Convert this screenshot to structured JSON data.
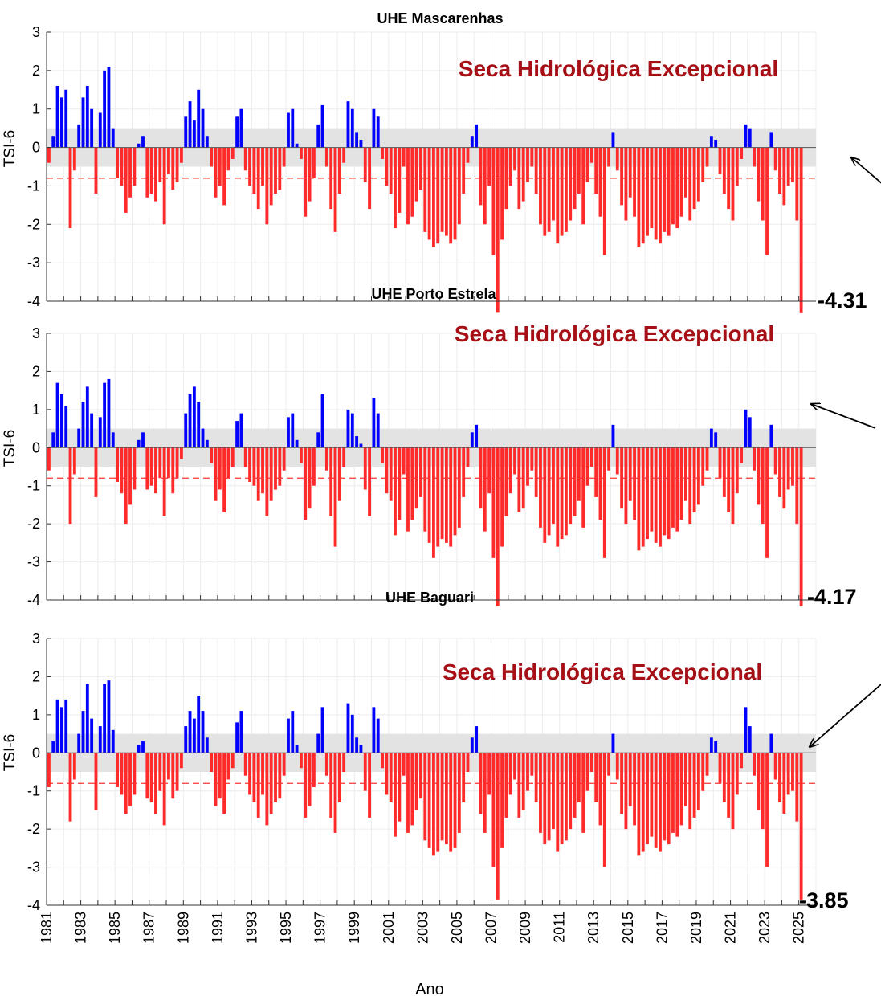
{
  "colors": {
    "positive": "#0000ff",
    "negative": "#ff2a2a",
    "neutral_band": "#e3e3e3",
    "threshold_line": "#ff3333",
    "annotation": "#a50f15"
  },
  "chart_data": [
    {
      "type": "bar",
      "title": "UHE Mascarenhas",
      "ylabel": "TSI-6",
      "ylim": [
        -4,
        3
      ],
      "yticks": [
        -4,
        -3,
        -2,
        -1,
        0,
        1,
        2,
        3
      ],
      "xlim": [
        1981,
        2026
      ],
      "neutral_band": [
        -0.5,
        0.5
      ],
      "threshold": -0.8,
      "grid": true,
      "annotation": "Seca Hidrológica Excepcional",
      "min_label": "-4.31",
      "x": [
        1981.0,
        1981.25,
        1981.5,
        1981.75,
        1982.0,
        1982.25,
        1982.5,
        1982.75,
        1983.0,
        1983.25,
        1983.5,
        1983.75,
        1984.0,
        1984.25,
        1984.5,
        1984.75,
        1985.0,
        1985.25,
        1985.5,
        1985.75,
        1986.0,
        1986.25,
        1986.5,
        1986.75,
        1987.0,
        1987.25,
        1987.5,
        1987.75,
        1988.0,
        1988.25,
        1988.5,
        1988.75,
        1989.0,
        1989.25,
        1989.5,
        1989.75,
        1990.0,
        1990.25,
        1990.5,
        1990.75,
        1991.0,
        1991.25,
        1991.5,
        1991.75,
        1992.0,
        1992.25,
        1992.5,
        1992.75,
        1993.0,
        1993.25,
        1993.5,
        1993.75,
        1994.0,
        1994.25,
        1994.5,
        1994.75,
        1995.0,
        1995.25,
        1995.5,
        1995.75,
        1996.0,
        1996.25,
        1996.5,
        1996.75,
        1997.0,
        1997.25,
        1997.5,
        1997.75,
        1998.0,
        1998.25,
        1998.5,
        1998.75,
        1999.0,
        1999.25,
        1999.5,
        1999.75,
        2000.0,
        2000.25,
        2000.5,
        2000.75,
        2001.0,
        2001.25,
        2001.5,
        2001.75,
        2002.0,
        2002.25,
        2002.5,
        2002.75,
        2003.0,
        2003.25,
        2003.5,
        2003.75,
        2004.0,
        2004.25,
        2004.5,
        2004.75,
        2005.0,
        2005.25,
        2005.5,
        2005.75,
        2006.0,
        2006.25,
        2006.5,
        2006.75,
        2007.0,
        2007.25,
        2007.5,
        2007.75,
        2008.0,
        2008.25,
        2008.5,
        2008.75,
        2009.0,
        2009.25,
        2009.5,
        2009.75,
        2010.0,
        2010.25,
        2010.5,
        2010.75,
        2011.0,
        2011.25,
        2011.5,
        2011.75,
        2012.0,
        2012.25,
        2012.5,
        2012.75,
        2013.0,
        2013.25,
        2013.5,
        2013.75,
        2014.0,
        2014.25,
        2014.5,
        2014.75,
        2015.0,
        2015.25,
        2015.5,
        2015.75,
        2016.0,
        2016.25,
        2016.5,
        2016.75,
        2017.0,
        2017.25,
        2017.5,
        2017.75,
        2018.0,
        2018.25,
        2018.5,
        2018.75,
        2019.0,
        2019.25,
        2019.5,
        2019.75,
        2020.0,
        2020.25,
        2020.5,
        2020.75,
        2021.0,
        2021.25,
        2021.5,
        2021.75,
        2022.0,
        2022.25,
        2022.5,
        2022.75,
        2023.0,
        2023.25,
        2023.5,
        2023.75,
        2024.0,
        2024.25,
        2024.5,
        2024.75,
        2025.0
      ],
      "y": [
        -0.4,
        0.3,
        1.6,
        1.3,
        1.5,
        -2.1,
        -0.6,
        0.6,
        1.3,
        1.6,
        1.0,
        -1.2,
        0.9,
        2.0,
        2.1,
        0.5,
        -0.8,
        -1.0,
        -1.7,
        -1.3,
        -1.0,
        0.1,
        0.3,
        -1.3,
        -1.2,
        -1.4,
        -0.9,
        -2.0,
        -0.7,
        -1.1,
        -0.9,
        -0.4,
        0.8,
        1.2,
        0.7,
        1.5,
        1.0,
        0.3,
        -0.5,
        -1.3,
        -1.0,
        -1.5,
        -0.6,
        -0.3,
        0.8,
        1.0,
        -0.6,
        -1.0,
        -1.2,
        -1.6,
        -1.0,
        -2.0,
        -1.5,
        -1.2,
        -1.1,
        -0.5,
        0.9,
        1.0,
        0.1,
        -0.3,
        -1.8,
        -1.4,
        -0.8,
        0.6,
        1.1,
        -0.5,
        -1.6,
        -2.2,
        -1.2,
        -0.4,
        1.2,
        1.0,
        0.4,
        0.2,
        -0.9,
        -1.6,
        1.0,
        0.8,
        -0.3,
        -1.0,
        -1.2,
        -2.1,
        -1.7,
        -0.5,
        -2.0,
        -1.8,
        -1.4,
        -1.1,
        -2.2,
        -2.4,
        -2.6,
        -2.5,
        -2.2,
        -2.3,
        -2.5,
        -2.4,
        -2.0,
        -1.2,
        -0.4,
        0.3,
        0.6,
        -1.5,
        -2.0,
        -1.0,
        -2.8,
        -4.3,
        -2.4,
        -1.6,
        -1.0,
        -0.6,
        -1.6,
        -1.4,
        -0.9,
        -0.5,
        -1.2,
        -2.0,
        -2.3,
        -2.2,
        -1.9,
        -2.5,
        -2.3,
        -2.2,
        -1.9,
        -1.6,
        -1.2,
        -2.0,
        -0.9,
        -0.4,
        -1.2,
        -1.8,
        -2.8,
        -0.5,
        0.4,
        -0.6,
        -1.5,
        -1.9,
        -1.3,
        -1.8,
        -2.6,
        -2.5,
        -2.3,
        -2.1,
        -2.4,
        -2.5,
        -2.2,
        -2.3,
        -2.0,
        -2.1,
        -1.8,
        -1.3,
        -1.9,
        -1.6,
        -1.4,
        -0.9,
        -0.5,
        0.3,
        0.2,
        -0.7,
        -1.2,
        -1.6,
        -1.9,
        -1.0,
        -0.3,
        0.6,
        0.5,
        -0.5,
        -1.4,
        -1.9,
        -2.8,
        0.4,
        -0.6,
        -1.2,
        -1.5,
        -1.0,
        -0.9,
        -1.9,
        -4.31
      ]
    },
    {
      "type": "bar",
      "title": "UHE Porto Estrela",
      "ylabel": "TSI-6",
      "ylim": [
        -4,
        3
      ],
      "yticks": [
        -4,
        -3,
        -2,
        -1,
        0,
        1,
        2,
        3
      ],
      "xlim": [
        1981,
        2026
      ],
      "neutral_band": [
        -0.5,
        0.5
      ],
      "threshold": -0.8,
      "grid": true,
      "annotation": "Seca Hidrológica Excepcional",
      "min_label": "-4.17",
      "x": [
        1981.0,
        1981.25,
        1981.5,
        1981.75,
        1982.0,
        1982.25,
        1982.5,
        1982.75,
        1983.0,
        1983.25,
        1983.5,
        1983.75,
        1984.0,
        1984.25,
        1984.5,
        1984.75,
        1985.0,
        1985.25,
        1985.5,
        1985.75,
        1986.0,
        1986.25,
        1986.5,
        1986.75,
        1987.0,
        1987.25,
        1987.5,
        1987.75,
        1988.0,
        1988.25,
        1988.5,
        1988.75,
        1989.0,
        1989.25,
        1989.5,
        1989.75,
        1990.0,
        1990.25,
        1990.5,
        1990.75,
        1991.0,
        1991.25,
        1991.5,
        1991.75,
        1992.0,
        1992.25,
        1992.5,
        1992.75,
        1993.0,
        1993.25,
        1993.5,
        1993.75,
        1994.0,
        1994.25,
        1994.5,
        1994.75,
        1995.0,
        1995.25,
        1995.5,
        1995.75,
        1996.0,
        1996.25,
        1996.5,
        1996.75,
        1997.0,
        1997.25,
        1997.5,
        1997.75,
        1998.0,
        1998.25,
        1998.5,
        1998.75,
        1999.0,
        1999.25,
        1999.5,
        1999.75,
        2000.0,
        2000.25,
        2000.5,
        2000.75,
        2001.0,
        2001.25,
        2001.5,
        2001.75,
        2002.0,
        2002.25,
        2002.5,
        2002.75,
        2003.0,
        2003.25,
        2003.5,
        2003.75,
        2004.0,
        2004.25,
        2004.5,
        2004.75,
        2005.0,
        2005.25,
        2005.5,
        2005.75,
        2006.0,
        2006.25,
        2006.5,
        2006.75,
        2007.0,
        2007.25,
        2007.5,
        2007.75,
        2008.0,
        2008.25,
        2008.5,
        2008.75,
        2009.0,
        2009.25,
        2009.5,
        2009.75,
        2010.0,
        2010.25,
        2010.5,
        2010.75,
        2011.0,
        2011.25,
        2011.5,
        2011.75,
        2012.0,
        2012.25,
        2012.5,
        2012.75,
        2013.0,
        2013.25,
        2013.5,
        2013.75,
        2014.0,
        2014.25,
        2014.5,
        2014.75,
        2015.0,
        2015.25,
        2015.5,
        2015.75,
        2016.0,
        2016.25,
        2016.5,
        2016.75,
        2017.0,
        2017.25,
        2017.5,
        2017.75,
        2018.0,
        2018.25,
        2018.5,
        2018.75,
        2019.0,
        2019.25,
        2019.5,
        2019.75,
        2020.0,
        2020.25,
        2020.5,
        2020.75,
        2021.0,
        2021.25,
        2021.5,
        2021.75,
        2022.0,
        2022.25,
        2022.5,
        2022.75,
        2023.0,
        2023.25,
        2023.5,
        2023.75,
        2024.0,
        2024.25,
        2024.5,
        2024.75,
        2025.0
      ],
      "y": [
        -0.6,
        0.4,
        1.7,
        1.4,
        1.1,
        -2.0,
        -0.7,
        0.5,
        1.2,
        1.6,
        0.9,
        -1.3,
        0.8,
        1.7,
        1.8,
        0.4,
        -0.9,
        -1.2,
        -2.0,
        -1.5,
        -1.1,
        0.2,
        0.4,
        -1.1,
        -1.0,
        -1.2,
        -0.8,
        -1.8,
        -0.8,
        -1.2,
        -0.8,
        -0.3,
        0.9,
        1.4,
        1.6,
        1.2,
        0.5,
        0.2,
        -0.4,
        -1.4,
        -1.1,
        -1.7,
        -0.8,
        -0.5,
        0.7,
        0.9,
        -0.5,
        -0.9,
        -1.0,
        -1.4,
        -1.2,
        -1.8,
        -1.4,
        -1.1,
        -1.0,
        -0.6,
        0.8,
        0.9,
        0.2,
        -0.4,
        -1.9,
        -1.6,
        -1.0,
        0.4,
        1.4,
        -0.6,
        -1.8,
        -2.6,
        -1.4,
        -0.5,
        1.0,
        0.9,
        0.3,
        0.1,
        -1.1,
        -1.8,
        1.3,
        0.9,
        -0.4,
        -1.2,
        -1.4,
        -2.3,
        -1.9,
        -0.7,
        -2.2,
        -1.9,
        -1.6,
        -1.3,
        -2.2,
        -2.5,
        -2.9,
        -2.6,
        -2.4,
        -2.5,
        -2.6,
        -2.3,
        -2.1,
        -1.3,
        -0.5,
        0.4,
        0.6,
        -1.6,
        -2.2,
        -1.2,
        -2.9,
        -4.17,
        -2.6,
        -1.8,
        -1.2,
        -0.7,
        -1.7,
        -1.6,
        -1.0,
        -0.6,
        -1.3,
        -2.1,
        -2.5,
        -2.3,
        -2.0,
        -2.6,
        -2.4,
        -2.3,
        -2.0,
        -1.8,
        -1.4,
        -2.1,
        -1.0,
        -0.5,
        -1.3,
        -1.9,
        -2.9,
        -0.6,
        0.6,
        -0.7,
        -1.6,
        -2.0,
        -1.4,
        -1.9,
        -2.7,
        -2.6,
        -2.4,
        -2.2,
        -2.5,
        -2.6,
        -2.3,
        -2.4,
        -2.1,
        -2.2,
        -1.9,
        -1.4,
        -2.0,
        -1.7,
        -1.5,
        -1.0,
        -0.6,
        0.5,
        0.4,
        -0.8,
        -1.3,
        -1.7,
        -2.0,
        -1.2,
        -0.4,
        1.0,
        0.8,
        -0.6,
        -1.5,
        -2.0,
        -2.9,
        0.6,
        -0.7,
        -1.3,
        -1.6,
        -1.1,
        -1.0,
        -2.0,
        -4.17
      ]
    },
    {
      "type": "bar",
      "title": "UHE Baguari",
      "xlabel": "Ano",
      "ylabel": "TSI-6",
      "ylim": [
        -4,
        3
      ],
      "yticks": [
        -4,
        -3,
        -2,
        -1,
        0,
        1,
        2,
        3
      ],
      "xlim": [
        1981,
        2026
      ],
      "xticks": [
        "1981",
        "1983",
        "1985",
        "1987",
        "1989",
        "1991",
        "1993",
        "1995",
        "1997",
        "1999",
        "2001",
        "2003",
        "2005",
        "2007",
        "2009",
        "2011",
        "2013",
        "2015",
        "2017",
        "2019",
        "2021",
        "2023",
        "2025"
      ],
      "neutral_band": [
        -0.5,
        0.5
      ],
      "threshold": -0.8,
      "grid": true,
      "annotation": "Seca Hidrológica Excepcional",
      "min_label": "-3.85",
      "x": [
        1981.0,
        1981.25,
        1981.5,
        1981.75,
        1982.0,
        1982.25,
        1982.5,
        1982.75,
        1983.0,
        1983.25,
        1983.5,
        1983.75,
        1984.0,
        1984.25,
        1984.5,
        1984.75,
        1985.0,
        1985.25,
        1985.5,
        1985.75,
        1986.0,
        1986.25,
        1986.5,
        1986.75,
        1987.0,
        1987.25,
        1987.5,
        1987.75,
        1988.0,
        1988.25,
        1988.5,
        1988.75,
        1989.0,
        1989.25,
        1989.5,
        1989.75,
        1990.0,
        1990.25,
        1990.5,
        1990.75,
        1991.0,
        1991.25,
        1991.5,
        1991.75,
        1992.0,
        1992.25,
        1992.5,
        1992.75,
        1993.0,
        1993.25,
        1993.5,
        1993.75,
        1994.0,
        1994.25,
        1994.5,
        1994.75,
        1995.0,
        1995.25,
        1995.5,
        1995.75,
        1996.0,
        1996.25,
        1996.5,
        1996.75,
        1997.0,
        1997.25,
        1997.5,
        1997.75,
        1998.0,
        1998.25,
        1998.5,
        1998.75,
        1999.0,
        1999.25,
        1999.5,
        1999.75,
        2000.0,
        2000.25,
        2000.5,
        2000.75,
        2001.0,
        2001.25,
        2001.5,
        2001.75,
        2002.0,
        2002.25,
        2002.5,
        2002.75,
        2003.0,
        2003.25,
        2003.5,
        2003.75,
        2004.0,
        2004.25,
        2004.5,
        2004.75,
        2005.0,
        2005.25,
        2005.5,
        2005.75,
        2006.0,
        2006.25,
        2006.5,
        2006.75,
        2007.0,
        2007.25,
        2007.5,
        2007.75,
        2008.0,
        2008.25,
        2008.5,
        2008.75,
        2009.0,
        2009.25,
        2009.5,
        2009.75,
        2010.0,
        2010.25,
        2010.5,
        2010.75,
        2011.0,
        2011.25,
        2011.5,
        2011.75,
        2012.0,
        2012.25,
        2012.5,
        2012.75,
        2013.0,
        2013.25,
        2013.5,
        2013.75,
        2014.0,
        2014.25,
        2014.5,
        2014.75,
        2015.0,
        2015.25,
        2015.5,
        2015.75,
        2016.0,
        2016.25,
        2016.5,
        2016.75,
        2017.0,
        2017.25,
        2017.5,
        2017.75,
        2018.0,
        2018.25,
        2018.5,
        2018.75,
        2019.0,
        2019.25,
        2019.5,
        2019.75,
        2020.0,
        2020.25,
        2020.5,
        2020.75,
        2021.0,
        2021.25,
        2021.5,
        2021.75,
        2022.0,
        2022.25,
        2022.5,
        2022.75,
        2023.0,
        2023.25,
        2023.5,
        2023.75,
        2024.0,
        2024.25,
        2024.5,
        2024.75,
        2025.0
      ],
      "y": [
        -0.9,
        0.3,
        1.4,
        1.2,
        1.4,
        -1.8,
        -0.7,
        0.5,
        1.1,
        1.8,
        0.9,
        -1.5,
        0.7,
        1.8,
        1.9,
        0.6,
        -0.9,
        -1.1,
        -1.6,
        -1.4,
        -1.1,
        0.2,
        0.3,
        -1.2,
        -1.3,
        -1.6,
        -1.0,
        -1.9,
        -0.7,
        -1.2,
        -1.0,
        -0.4,
        0.7,
        1.1,
        0.9,
        1.5,
        1.1,
        0.4,
        -0.5,
        -1.4,
        -1.2,
        -1.6,
        -0.7,
        -0.4,
        0.8,
        1.1,
        -0.6,
        -1.1,
        -1.3,
        -1.7,
        -1.1,
        -1.9,
        -1.6,
        -1.3,
        -1.2,
        -0.6,
        0.9,
        1.1,
        0.2,
        -0.4,
        -1.7,
        -1.4,
        -0.9,
        0.5,
        1.2,
        -0.6,
        -1.7,
        -2.1,
        -1.3,
        -0.5,
        1.3,
        1.0,
        0.4,
        0.2,
        -1.0,
        -1.7,
        1.2,
        0.9,
        -0.4,
        -1.1,
        -1.3,
        -2.2,
        -1.8,
        -0.6,
        -2.1,
        -1.9,
        -1.5,
        -1.2,
        -2.3,
        -2.5,
        -2.7,
        -2.6,
        -2.3,
        -2.4,
        -2.6,
        -2.5,
        -2.1,
        -1.3,
        -0.5,
        0.4,
        0.7,
        -1.6,
        -2.1,
        -1.1,
        -3.0,
        -3.85,
        -2.5,
        -1.7,
        -1.1,
        -0.7,
        -1.7,
        -1.5,
        -1.0,
        -0.6,
        -1.3,
        -2.1,
        -2.4,
        -2.3,
        -2.0,
        -2.6,
        -2.4,
        -2.3,
        -2.0,
        -1.7,
        -1.3,
        -2.1,
        -1.0,
        -0.5,
        -1.3,
        -1.9,
        -3.0,
        -0.6,
        0.5,
        -0.7,
        -1.6,
        -2.0,
        -1.4,
        -1.9,
        -2.7,
        -2.6,
        -2.4,
        -2.2,
        -2.5,
        -2.6,
        -2.3,
        -2.4,
        -2.1,
        -2.2,
        -1.9,
        -1.4,
        -2.0,
        -1.7,
        -1.5,
        -1.0,
        -0.6,
        0.4,
        0.3,
        -0.8,
        -1.3,
        -1.7,
        -2.0,
        -1.1,
        -0.4,
        1.2,
        0.7,
        -0.6,
        -1.5,
        -2.0,
        -3.0,
        0.5,
        -0.7,
        -1.3,
        -1.6,
        -1.1,
        -1.0,
        -1.8,
        -3.85
      ]
    }
  ]
}
